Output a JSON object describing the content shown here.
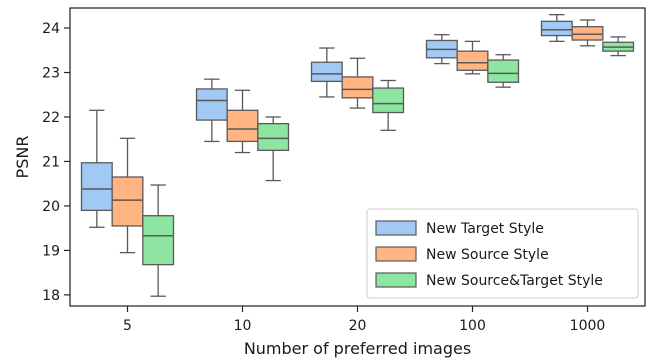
{
  "chart_data": {
    "type": "box",
    "xlabel": "Number of preferred images",
    "ylabel": "PSNR",
    "categories": [
      "5",
      "10",
      "20",
      "100",
      "1000"
    ],
    "yticks": [
      18,
      19,
      20,
      21,
      22,
      23,
      24
    ],
    "ylim": [
      17.75,
      24.45
    ],
    "legend_position": "lower-right",
    "series": [
      {
        "name": "New Target Style",
        "color": "#a1c9f4",
        "boxes": [
          {
            "whislo": 19.52,
            "q1": 19.9,
            "med": 20.38,
            "q3": 20.97,
            "whishi": 22.15
          },
          {
            "whislo": 21.45,
            "q1": 21.93,
            "med": 22.37,
            "q3": 22.63,
            "whishi": 22.85
          },
          {
            "whislo": 22.45,
            "q1": 22.8,
            "med": 22.97,
            "q3": 23.23,
            "whishi": 23.55
          },
          {
            "whislo": 23.2,
            "q1": 23.33,
            "med": 23.52,
            "q3": 23.72,
            "whishi": 23.85
          },
          {
            "whislo": 23.7,
            "q1": 23.83,
            "med": 23.96,
            "q3": 24.15,
            "whishi": 24.3
          }
        ]
      },
      {
        "name": "New Source Style",
        "color": "#ffb482",
        "boxes": [
          {
            "whislo": 18.95,
            "q1": 19.55,
            "med": 20.13,
            "q3": 20.65,
            "whishi": 21.52
          },
          {
            "whislo": 21.2,
            "q1": 21.45,
            "med": 21.73,
            "q3": 22.15,
            "whishi": 22.6
          },
          {
            "whislo": 22.2,
            "q1": 22.43,
            "med": 22.62,
            "q3": 22.9,
            "whishi": 23.32
          },
          {
            "whislo": 22.97,
            "q1": 23.05,
            "med": 23.22,
            "q3": 23.48,
            "whishi": 23.7
          },
          {
            "whislo": 23.6,
            "q1": 23.73,
            "med": 23.86,
            "q3": 24.03,
            "whishi": 24.18
          }
        ]
      },
      {
        "name": "New Source&Target Style",
        "color": "#8de5a1",
        "boxes": [
          {
            "whislo": 17.97,
            "q1": 18.68,
            "med": 19.33,
            "q3": 19.78,
            "whishi": 20.47
          },
          {
            "whislo": 20.57,
            "q1": 21.25,
            "med": 21.52,
            "q3": 21.85,
            "whishi": 22.0
          },
          {
            "whislo": 21.7,
            "q1": 22.1,
            "med": 22.3,
            "q3": 22.65,
            "whishi": 22.82
          },
          {
            "whislo": 22.67,
            "q1": 22.78,
            "med": 22.98,
            "q3": 23.28,
            "whishi": 23.4
          },
          {
            "whislo": 23.38,
            "q1": 23.48,
            "med": 23.57,
            "q3": 23.68,
            "whishi": 23.8
          }
        ]
      }
    ]
  }
}
